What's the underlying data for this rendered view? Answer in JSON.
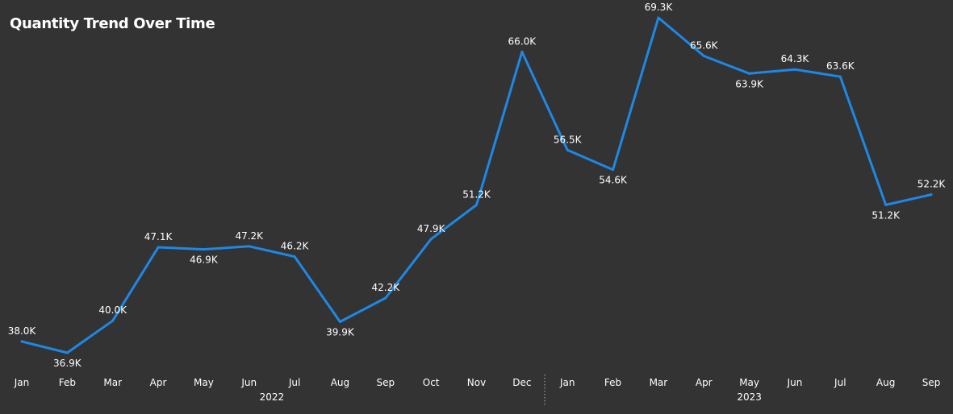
{
  "header": {
    "title": "Quantity Trend Over Time"
  },
  "chart_data": {
    "type": "line",
    "title": "Quantity Trend Over Time",
    "xlabel": "",
    "ylabel": "",
    "grid": false,
    "line_color": "#1e88e5",
    "background": "#333333",
    "years": [
      {
        "label": "2022",
        "months": [
          "Jan",
          "Feb",
          "Mar",
          "Apr",
          "May",
          "Jun",
          "Jul",
          "Aug",
          "Sep",
          "Oct",
          "Nov",
          "Dec"
        ]
      },
      {
        "label": "2023",
        "months": [
          "Jan",
          "Feb",
          "Mar",
          "Apr",
          "May",
          "Jun",
          "Jul",
          "Aug",
          "Sep"
        ]
      }
    ],
    "series": [
      {
        "values": [
          38.0,
          36.9,
          40.0,
          47.1,
          46.9,
          47.2,
          46.2,
          39.9,
          42.2,
          47.9,
          51.2,
          66.0,
          56.5,
          54.6,
          69.3,
          65.6,
          63.9,
          64.3,
          63.6,
          51.2,
          52.2
        ],
        "labels": [
          "38.0K",
          "36.9K",
          "40.0K",
          "47.1K",
          "46.9K",
          "47.2K",
          "46.2K",
          "39.9K",
          "42.2K",
          "47.9K",
          "51.2K",
          "66.0K",
          "56.5K",
          "54.6K",
          "69.3K",
          "65.6K",
          "63.9K",
          "64.3K",
          "63.6K",
          "51.2K",
          "52.2K"
        ],
        "label_pos": [
          "above",
          "below",
          "above",
          "above",
          "below",
          "above",
          "above",
          "below",
          "above",
          "above",
          "above",
          "above",
          "above",
          "below",
          "above",
          "above",
          "below",
          "above",
          "above",
          "below",
          "above"
        ]
      }
    ]
  }
}
